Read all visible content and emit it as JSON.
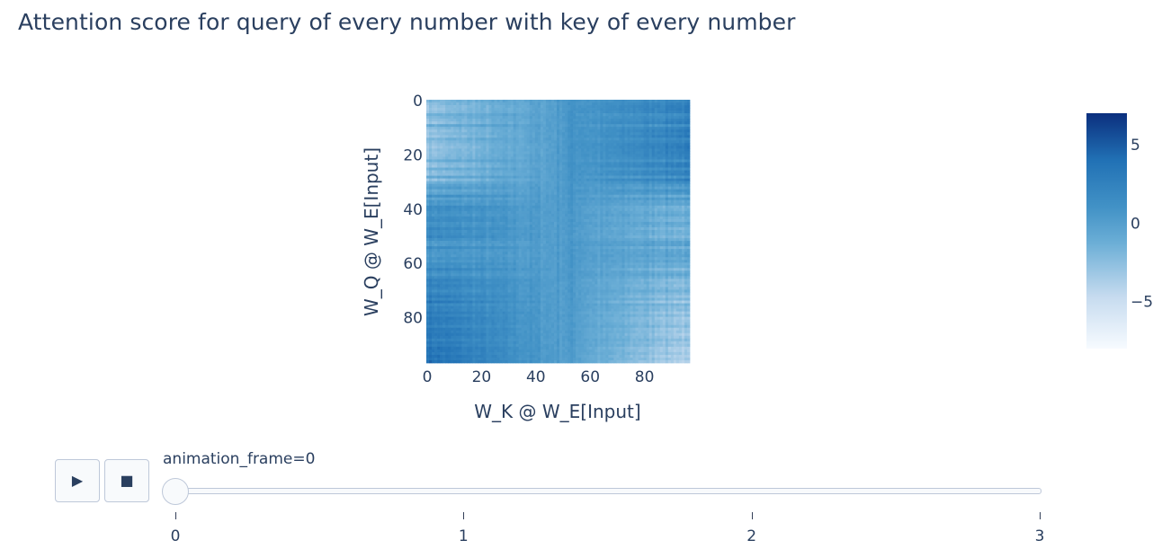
{
  "chart_data": {
    "type": "heatmap",
    "title": "Attention score for query of every number with key of every number",
    "xlabel": "W_K @ W_E[Input]",
    "ylabel": "W_Q @ W_E[Input]",
    "x_range": [
      0,
      97
    ],
    "y_range": [
      0,
      97
    ],
    "y_reversed": true,
    "x_ticks": [
      "0",
      "20",
      "40",
      "60",
      "80"
    ],
    "y_ticks": [
      "0",
      "20",
      "40",
      "60",
      "80"
    ],
    "colorscale": [
      "#f7fbff",
      "#c6dbef",
      "#6baed6",
      "#4292c6",
      "#2171b5",
      "#08306b"
    ],
    "colorbar": {
      "min": -8,
      "max": 7,
      "ticks": [
        "5",
        "0",
        "−5"
      ]
    },
    "description_cols": 97,
    "approx_row_mean": [
      -2,
      -2.5,
      -3,
      -3,
      -2.8,
      -1.5,
      -2,
      -2.5,
      -3,
      -1,
      -2.5,
      -3,
      -2.6,
      -3.2,
      -1.8,
      -2.4,
      -3,
      -3.2,
      -2.8,
      -2.9,
      -2.6,
      -2.4,
      -1.2,
      -2.8,
      -3,
      -1.4,
      -2.6,
      -2.7,
      -0.8,
      -2.9,
      -1.5,
      -0.5,
      0.2,
      -1,
      -0.5,
      1.2,
      -0.4,
      0.6,
      0.4,
      1.8,
      1.6,
      1.2,
      0.8,
      1.6,
      1.8,
      0.9,
      1.2,
      2.1,
      1.4,
      1.6,
      2.2,
      1.3,
      0.4,
      0.2,
      1.7,
      0.6,
      0.6,
      0.4,
      1,
      0.6,
      1.4,
      1.1,
      2.3,
      1.2,
      0.8,
      1.6,
      2.6,
      2.2,
      2.7,
      2.2,
      1.6,
      2.3,
      3.1,
      2.1,
      3.6,
      1.9,
      2.6,
      2.5,
      3.4,
      2.6,
      3.5,
      3.2,
      3.1,
      2.4,
      3.5,
      3.2,
      3.7,
      3.3,
      2.6,
      3.4,
      3,
      4,
      3.8,
      3.4,
      4.1,
      3.6,
      4.3
    ]
  },
  "slider": {
    "label": "animation_frame=0",
    "steps": [
      "0",
      "1",
      "2",
      "3"
    ],
    "active": 0
  },
  "controls": {
    "play_icon": "play-icon",
    "stop_icon": "stop-icon",
    "play_glyph": "▶",
    "stop_glyph": "■"
  }
}
